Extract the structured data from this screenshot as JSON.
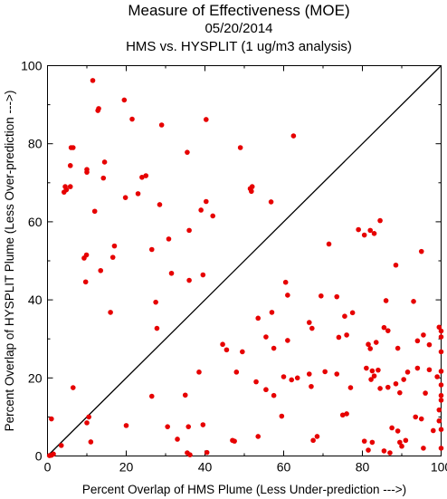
{
  "chart_data": {
    "type": "scatter",
    "title": "Measure of Effectiveness (MOE)",
    "date": "05/20/2014",
    "subtitle": "HMS vs. HYSPLIT  (1 ug/m3 analysis)",
    "xlabel": "Percent Overlap of HMS Plume (Less Under-prediction --->)",
    "ylabel": "Percent Overlap of HYSPLIT Plume (Less Over-prediction --->)",
    "xlim": [
      0,
      100
    ],
    "ylim": [
      0,
      100
    ],
    "xticks": [
      "0",
      "20",
      "40",
      "60",
      "80",
      "100"
    ],
    "yticks": [
      "0",
      "20",
      "40",
      "60",
      "80",
      "100"
    ],
    "reference_line": "y = x",
    "point_color": "#e60000",
    "grid": false,
    "points": [
      [
        11.5,
        96.2
      ],
      [
        19.5,
        91.2
      ],
      [
        13,
        89
      ],
      [
        12.8,
        88.5
      ],
      [
        21.5,
        86.3
      ],
      [
        29,
        84.8
      ],
      [
        40.3,
        86.2
      ],
      [
        62.5,
        82
      ],
      [
        49,
        79
      ],
      [
        6,
        79
      ],
      [
        6.5,
        79
      ],
      [
        35.5,
        77.8
      ],
      [
        14.5,
        75.3
      ],
      [
        5.8,
        74.4
      ],
      [
        10,
        73.4
      ],
      [
        10,
        72.7
      ],
      [
        14.2,
        71.2
      ],
      [
        24,
        71.4
      ],
      [
        25,
        71.8
      ],
      [
        4.5,
        69
      ],
      [
        4.8,
        68.2
      ],
      [
        5.8,
        69
      ],
      [
        52,
        69
      ],
      [
        51.5,
        68.5
      ],
      [
        51.8,
        67.8
      ],
      [
        4.2,
        67.6
      ],
      [
        23,
        67.2
      ],
      [
        19.8,
        66.2
      ],
      [
        40.3,
        65.2
      ],
      [
        56.8,
        65.1
      ],
      [
        28.5,
        64.4
      ],
      [
        12,
        62.7
      ],
      [
        39,
        63
      ],
      [
        42,
        61.5
      ],
      [
        36,
        57.8
      ],
      [
        30.8,
        55.6
      ],
      [
        17,
        53.8
      ],
      [
        9.9,
        51.5
      ],
      [
        9.3,
        50.7
      ],
      [
        16.6,
        50.9
      ],
      [
        26.5,
        52.9
      ],
      [
        13.5,
        47.5
      ],
      [
        31.5,
        46.8
      ],
      [
        39.5,
        46.4
      ],
      [
        36,
        45
      ],
      [
        9.7,
        44.6
      ],
      [
        60.5,
        44.5
      ],
      [
        61,
        41.2
      ],
      [
        16,
        36.8
      ],
      [
        27.5,
        39.4
      ],
      [
        57,
        36.8
      ],
      [
        27.8,
        32.7
      ],
      [
        73.5,
        40.8
      ],
      [
        69.5,
        41
      ],
      [
        79,
        58
      ],
      [
        80.5,
        56.6
      ],
      [
        82,
        57.8
      ],
      [
        83,
        57
      ],
      [
        84.5,
        60.3
      ],
      [
        95,
        52.4
      ],
      [
        88.5,
        48.9
      ],
      [
        71.5,
        54.3
      ],
      [
        77.5,
        36.7
      ],
      [
        75.5,
        35.8
      ],
      [
        66.5,
        34.2
      ],
      [
        67.2,
        32.7
      ],
      [
        53.5,
        35.3
      ],
      [
        86,
        39.8
      ],
      [
        85.5,
        32.9
      ],
      [
        86.5,
        32.1
      ],
      [
        93,
        39.6
      ],
      [
        95.5,
        31
      ],
      [
        94,
        29.5
      ],
      [
        97,
        28.5
      ],
      [
        99.5,
        33
      ],
      [
        100,
        32
      ],
      [
        100,
        30.5
      ],
      [
        100,
        26.7
      ],
      [
        81.5,
        28.6
      ],
      [
        83.5,
        29.1
      ],
      [
        82,
        27.5
      ],
      [
        55.5,
        30.5
      ],
      [
        61,
        29.6
      ],
      [
        57.5,
        27.6
      ],
      [
        74,
        30.4
      ],
      [
        76,
        31
      ],
      [
        44.5,
        28.6
      ],
      [
        45.5,
        27.2
      ],
      [
        49.5,
        26.7
      ],
      [
        89,
        27.6
      ],
      [
        84,
        22
      ],
      [
        81,
        22.5
      ],
      [
        82.5,
        21.8
      ],
      [
        83,
        20.5
      ],
      [
        82.2,
        19.6
      ],
      [
        91.5,
        21.5
      ],
      [
        94,
        22.5
      ],
      [
        97,
        22.1
      ],
      [
        100,
        21.7
      ],
      [
        99,
        20.3
      ],
      [
        38.5,
        21.5
      ],
      [
        48,
        21.5
      ],
      [
        53,
        19
      ],
      [
        60,
        20.3
      ],
      [
        62,
        19.5
      ],
      [
        63.5,
        20
      ],
      [
        66.5,
        21
      ],
      [
        70.5,
        21.6
      ],
      [
        73.5,
        21
      ],
      [
        55.5,
        17
      ],
      [
        57.5,
        15.5
      ],
      [
        59.5,
        10.2
      ],
      [
        67,
        17.8
      ],
      [
        77,
        17.5
      ],
      [
        84.5,
        17.3
      ],
      [
        86.5,
        17.6
      ],
      [
        88.5,
        18.5
      ],
      [
        89.5,
        16.2
      ],
      [
        90.5,
        19.6
      ],
      [
        96,
        16.1
      ],
      [
        100,
        15.5
      ],
      [
        100,
        14.3
      ],
      [
        100,
        18.2
      ],
      [
        26.5,
        15.3
      ],
      [
        35,
        15.6
      ],
      [
        6.5,
        17.5
      ],
      [
        10.5,
        10
      ],
      [
        10,
        8.5
      ],
      [
        20,
        7.8
      ],
      [
        30.5,
        7.5
      ],
      [
        35.8,
        7.5
      ],
      [
        39.5,
        8
      ],
      [
        75,
        10.5
      ],
      [
        76,
        10.8
      ],
      [
        87.5,
        7.2
      ],
      [
        89,
        6.4
      ],
      [
        93.5,
        10
      ],
      [
        95,
        9.5
      ],
      [
        99.5,
        11.8
      ],
      [
        99.5,
        9
      ],
      [
        100,
        6.8
      ],
      [
        98,
        6.5
      ],
      [
        33,
        4.3
      ],
      [
        47,
        4
      ],
      [
        47.5,
        3.8
      ],
      [
        53.5,
        5
      ],
      [
        67.5,
        4
      ],
      [
        68.5,
        5
      ],
      [
        80.5,
        3.8
      ],
      [
        81.5,
        1.5
      ],
      [
        82.5,
        3.5
      ],
      [
        85.5,
        1.3
      ],
      [
        87,
        0.8
      ],
      [
        89.5,
        3.5
      ],
      [
        90,
        2.5
      ],
      [
        91,
        4
      ],
      [
        95.5,
        2
      ],
      [
        100,
        2
      ],
      [
        1,
        9.5
      ],
      [
        3.5,
        2.7
      ],
      [
        11,
        3.6
      ],
      [
        35.5,
        0.8
      ],
      [
        40.5,
        0.9
      ],
      [
        36.2,
        0.3
      ],
      [
        1,
        0.2
      ],
      [
        1.5,
        0.5
      ],
      [
        0.5,
        0.1
      ]
    ]
  }
}
